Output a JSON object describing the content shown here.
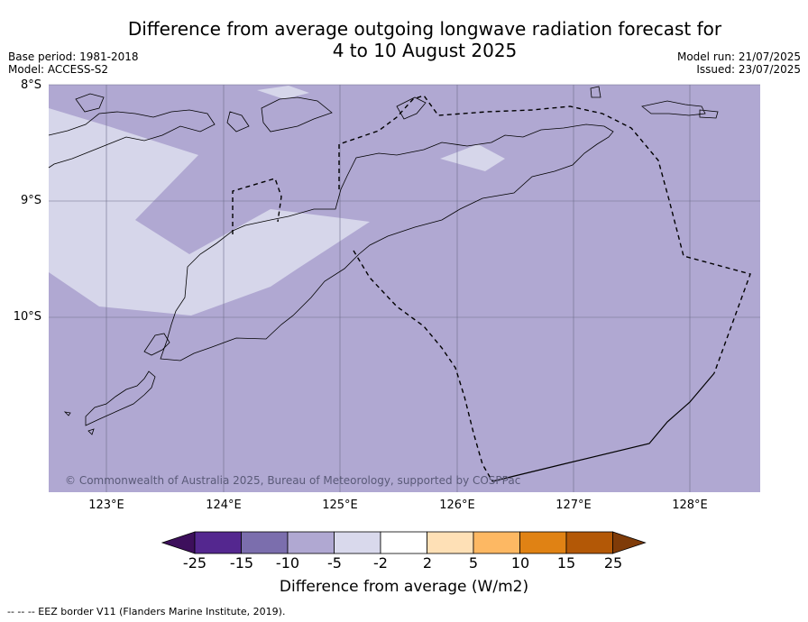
{
  "title": {
    "line1": "Difference from average outgoing longwave radiation forecast for",
    "line2": "4 to 10 August 2025"
  },
  "meta": {
    "base_period": "Base period: 1981-2018",
    "model": "Model: ACCESS-S2",
    "model_run": "Model run: 21/07/2025",
    "issued": "Issued: 23/07/2025"
  },
  "map": {
    "latitude_labels": [
      "8°S",
      "9°S",
      "10°S"
    ],
    "longitude_labels": [
      "123°E",
      "124°E",
      "125°E",
      "126°E",
      "127°E",
      "128°E"
    ],
    "credit": "© Commonwealth of Australia 2025, Bureau of Meteorology, supported by COSPPac",
    "colors": {
      "background_anomaly": "#b0a8d2",
      "weak_anomaly": "#d6d6ea",
      "coastline": "#000000",
      "gridline": "#6e6e8a"
    }
  },
  "colorbar": {
    "ticks": [
      "-25",
      "-15",
      "-10",
      "-5",
      "-2",
      "2",
      "5",
      "10",
      "15",
      "25"
    ],
    "colors": [
      "#3d0f5c",
      "#54278f",
      "#7b6ead",
      "#b0a8d2",
      "#d9d9ec",
      "#ffffff",
      "#fee0b6",
      "#fdb863",
      "#e08214",
      "#b35806",
      "#7f3b08"
    ],
    "label": "Difference from average (W/m2)"
  },
  "footer": "--  --  -- EEZ border V11 (Flanders Marine Institute, 2019)."
}
